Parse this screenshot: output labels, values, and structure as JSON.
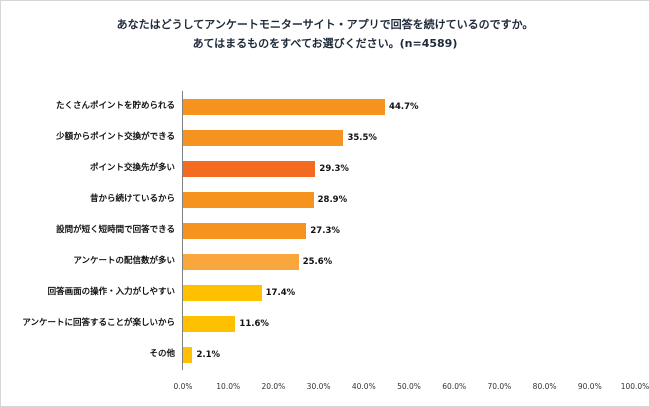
{
  "title": {
    "line1": "あなたはどうしてアンケートモニターサイト・アプリで回答を続けているのですか。",
    "line2": "あてはまるものをすべてお選びください。(n=4589)"
  },
  "chart_data": {
    "type": "bar",
    "orientation": "horizontal",
    "title": "あなたはどうしてアンケートモニターサイト・アプリで回答を続けているのですか。あてはまるものをすべてお選びください。(n=4589)",
    "categories": [
      "たくさんポイントを貯められる",
      "少額からポイント交換ができる",
      "ポイント交換先が多い",
      "昔から続けているから",
      "設問が短く短時間で回答できる",
      "アンケートの配信数が多い",
      "回答画面の操作・入力がしやすい",
      "アンケートに回答することが楽しいから",
      "その他"
    ],
    "values": [
      44.7,
      35.5,
      29.3,
      28.9,
      27.3,
      25.6,
      17.4,
      11.6,
      2.1
    ],
    "value_labels": [
      "44.7%",
      "35.5%",
      "29.3%",
      "28.9%",
      "27.3%",
      "25.6%",
      "17.4%",
      "11.6%",
      "2.1%"
    ],
    "bar_colors": [
      "#F6921E",
      "#F6921E",
      "#F26B21",
      "#F6921E",
      "#F6921E",
      "#F9A63C",
      "#FFC000",
      "#FFC000",
      "#FFC000"
    ],
    "xlim": [
      0,
      100
    ],
    "x_ticks": [
      "0.0%",
      "10.0%",
      "20.0%",
      "30.0%",
      "40.0%",
      "50.0%",
      "60.0%",
      "70.0%",
      "80.0%",
      "90.0%",
      "100.0%"
    ],
    "xlabel": "",
    "ylabel": "",
    "grid": false,
    "legend": false,
    "axis_line_color": "#808080",
    "label_color": "#111111",
    "title_color": "#1e2a3a"
  }
}
